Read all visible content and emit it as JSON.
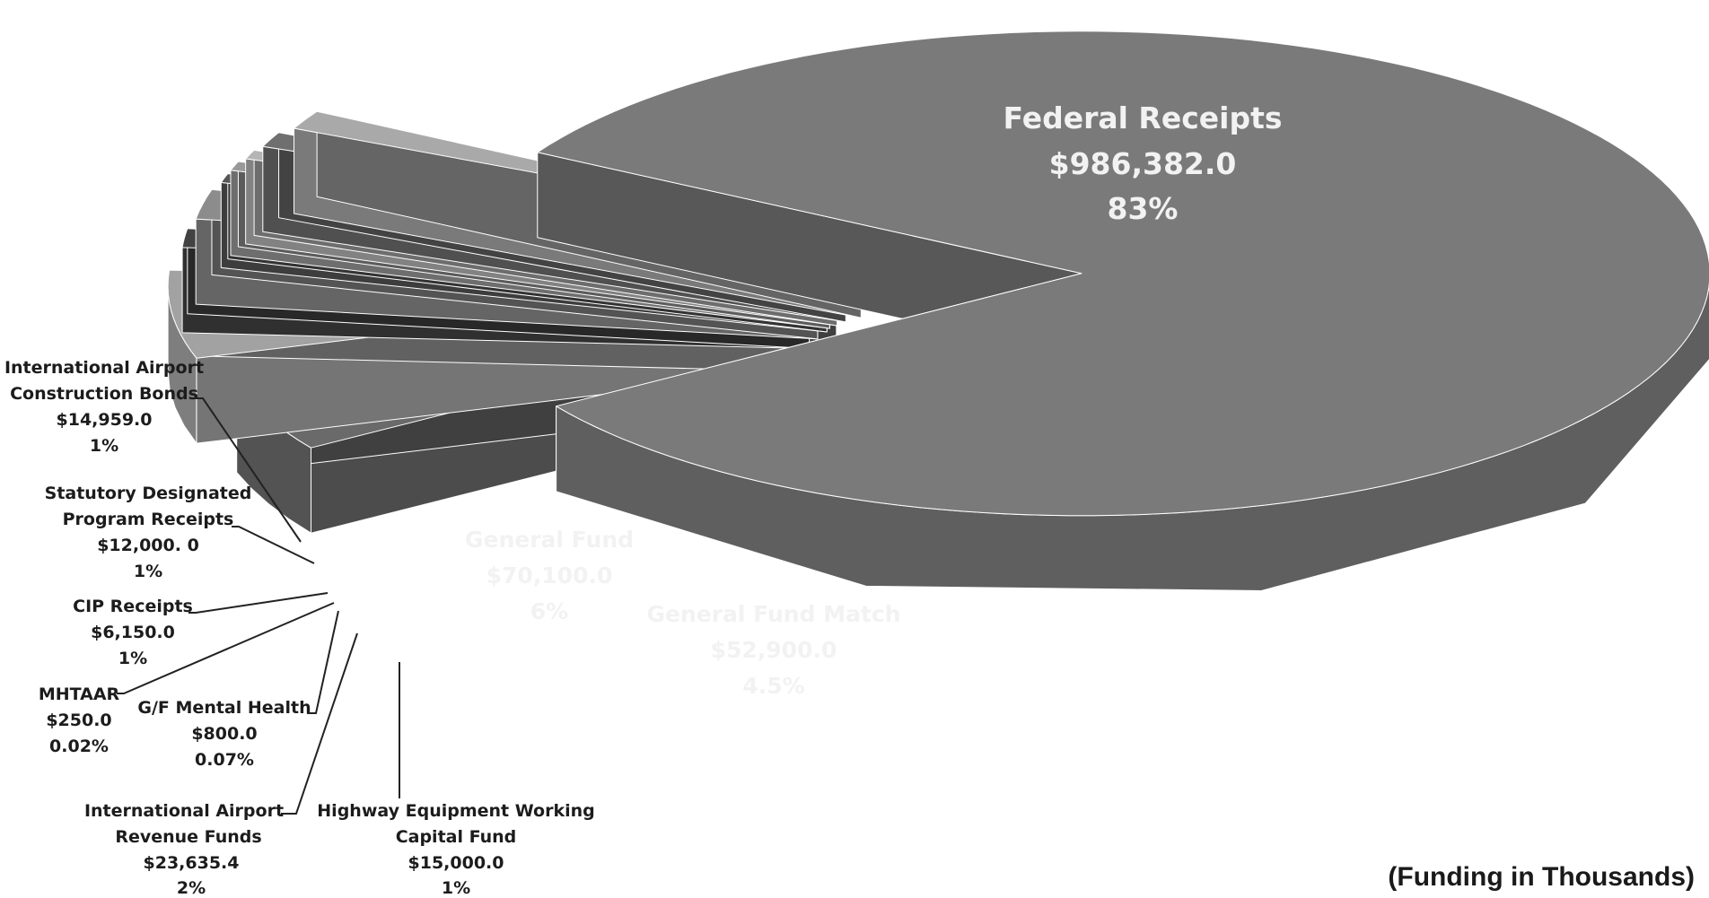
{
  "chart_data": {
    "type": "pie",
    "style": "3d-exploded",
    "note": "(Funding in Thousands)",
    "slices": [
      {
        "name": "Federal Receipts",
        "value": 986382.0,
        "value_label": "$986,382.0",
        "percent_label": "83%",
        "color": "#7a7a7a"
      },
      {
        "name": "General Fund Match",
        "value": 52900.0,
        "value_label": "$52,900.0",
        "percent_label": "4.5%",
        "color": "#6a6a6a"
      },
      {
        "name": "General Fund",
        "value": 70100.0,
        "value_label": "$70,100.0",
        "percent_label": "6%",
        "color": "#a2a2a2"
      },
      {
        "name": "Highway Equipment Working Capital Fund",
        "value": 15000.0,
        "value_label": "$15,000.0",
        "percent_label": "1%",
        "color": "#424242"
      },
      {
        "name": "International Airport Revenue Funds",
        "value": 23635.4,
        "value_label": "$23,635.4",
        "percent_label": "2%",
        "color": "#8c8c8c"
      },
      {
        "name": "G/F Mental Health",
        "value": 800.0,
        "value_label": "$800.0",
        "percent_label": "0.07%",
        "color": "#555555"
      },
      {
        "name": "MHTAAR",
        "value": 250.0,
        "value_label": "$250.0",
        "percent_label": "0.02%",
        "color": "#999999"
      },
      {
        "name": "CIP Receipts",
        "value": 6150.0,
        "value_label": "$6,150.0",
        "percent_label": "1%",
        "color": "#b5b5b5"
      },
      {
        "name": "Statutory Designated Program Receipts",
        "value": 12000.0,
        "value_label": "$12,000. 0",
        "percent_label": "1%",
        "color": "#6f6f6f"
      },
      {
        "name": "International Airport Construction Bonds",
        "value": 14959.0,
        "value_label": "$14,959.0",
        "percent_label": "1%",
        "color": "#a9a9a9"
      }
    ]
  },
  "labels": {
    "federal": {
      "l1": "Federal Receipts",
      "l2": "$986,382.0",
      "l3": "83%"
    },
    "gfm": {
      "l1": "General Fund Match",
      "l2": "$52,900.0",
      "l3": "4.5%"
    },
    "gf": {
      "l1": "General Fund",
      "l2": "$70,100.0",
      "l3": "6%"
    },
    "iacb": {
      "l1": "International Airport",
      "l2": "Construction Bonds",
      "l3": "$14,959.0",
      "l4": "1%"
    },
    "sdpr": {
      "l1": "Statutory Designated",
      "l2": "Program Receipts",
      "l3": "$12,000. 0",
      "l4": "1%"
    },
    "cip": {
      "l1": "CIP Receipts",
      "l2": "$6,150.0",
      "l3": "1%"
    },
    "mhtaar": {
      "l1": "MHTAAR",
      "l2": "$250.0",
      "l3": "0.02%"
    },
    "gfmh": {
      "l1": "G/F Mental Health",
      "l2": "$800.0",
      "l3": "0.07%"
    },
    "iarf": {
      "l1": "International Airport",
      "l2": "Revenue Funds",
      "l3": "$23,635.4",
      "l4": "2%"
    },
    "hewcf": {
      "l1": "Highway Equipment Working",
      "l2": "Capital Fund",
      "l3": "$15,000.0",
      "l4": "1%"
    }
  }
}
